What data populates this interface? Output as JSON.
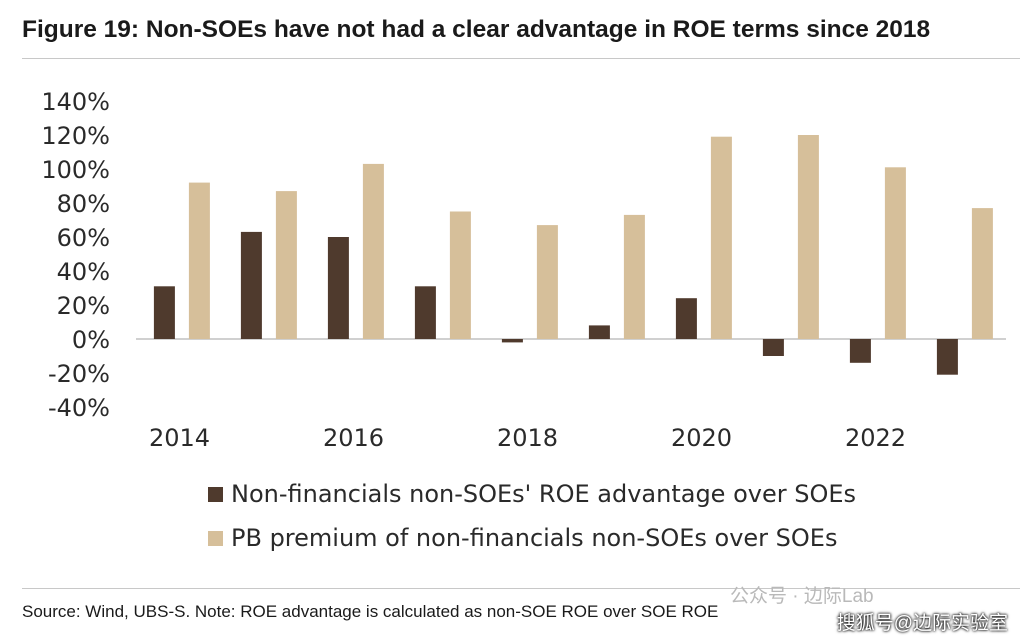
{
  "title": "Figure 19: Non-SOEs have not had a clear advantage in ROE terms since 2018",
  "source": "Source: Wind, UBS-S. Note: ROE advantage is calculated as non-SOE ROE over SOE ROE",
  "watermark": "公众号 · 边际Lab",
  "watermark2": "搜狐号@边际实验室",
  "colors": {
    "roe": "#4f3a2d",
    "pb": "#d6bf9a",
    "axis": "#c0c0c0"
  },
  "chart_data": {
    "type": "bar",
    "categories": [
      "2014",
      "2015",
      "2016",
      "2017",
      "2018",
      "2019",
      "2020",
      "2021",
      "2022",
      "2023"
    ],
    "x_tick_labels": [
      "2014",
      "2016",
      "2018",
      "2020",
      "2022"
    ],
    "series": [
      {
        "name": "Non-financials non-SOEs' ROE advantage over SOEs",
        "values": [
          31,
          63,
          60,
          31,
          -2,
          8,
          24,
          -10,
          -14,
          -21
        ]
      },
      {
        "name": "PB premium of non-financials non-SOEs over SOEs",
        "values": [
          92,
          87,
          103,
          75,
          67,
          73,
          119,
          120,
          101,
          77
        ]
      }
    ],
    "ylim": [
      -40,
      140
    ],
    "yticks": [
      140,
      120,
      100,
      80,
      60,
      40,
      20,
      0,
      -20,
      -40
    ],
    "ytick_format": "%",
    "legend_position": "bottom",
    "grid": false
  }
}
